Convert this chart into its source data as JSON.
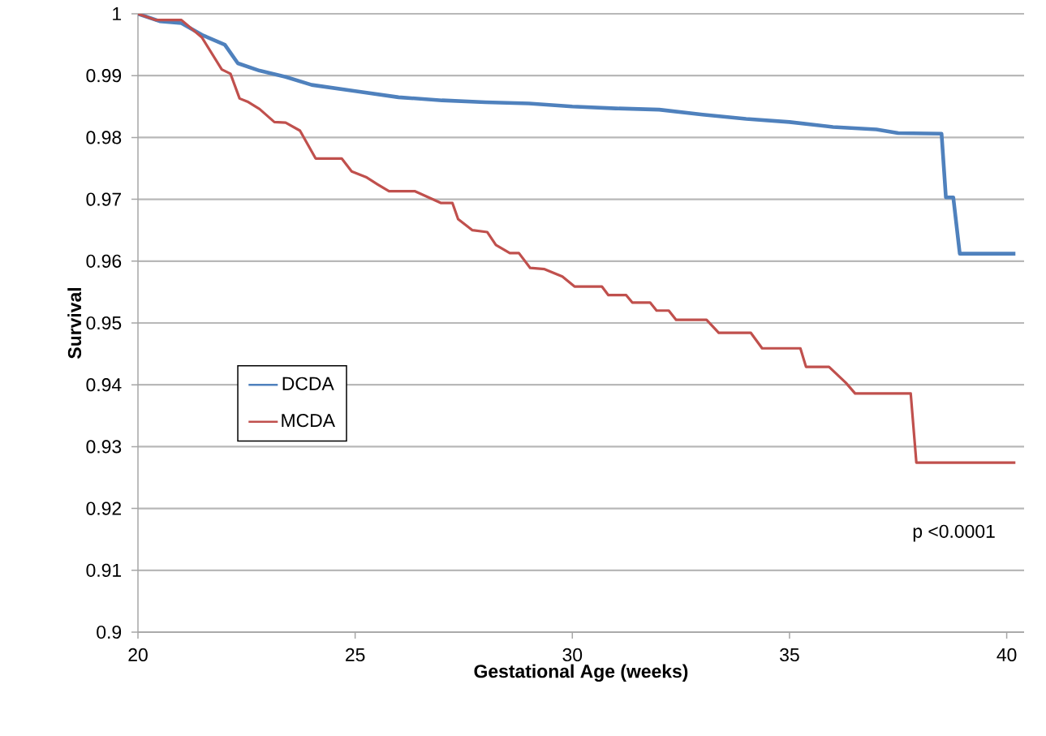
{
  "chart_data": {
    "type": "line",
    "xlabel": "Gestational Age (weeks)",
    "ylabel": "Survival",
    "xlim": [
      20,
      40.4
    ],
    "xticks": [
      20,
      25,
      30,
      35,
      40
    ],
    "ylim": [
      0.9,
      1
    ],
    "yticks": [
      0.9,
      0.91,
      0.92,
      0.93,
      0.94,
      0.95,
      0.96,
      0.97,
      0.98,
      0.99,
      1
    ],
    "grid": "y",
    "legend": "left",
    "line_style": "solid",
    "marker": "none",
    "annotations": [
      "p <0.0001"
    ],
    "series": [
      {
        "name": "DCDA",
        "color": "#4f81bd",
        "x": [
          20,
          20.5,
          21,
          21.5,
          22,
          22.3,
          22.8,
          23.4,
          24,
          25,
          26,
          27,
          28,
          29,
          30,
          31,
          32,
          33,
          34,
          35,
          36,
          37,
          37.5,
          38.5,
          38.6,
          38.77,
          38.92,
          40.2
        ],
        "values": [
          1,
          0.9988,
          0.9985,
          0.9965,
          0.995,
          0.992,
          0.9908,
          0.9898,
          0.9885,
          0.9875,
          0.9865,
          0.986,
          0.9857,
          0.9855,
          0.985,
          0.9847,
          0.9845,
          0.9837,
          0.983,
          0.9825,
          0.9817,
          0.9813,
          0.9807,
          0.9806,
          0.9703,
          0.9703,
          0.9612,
          0.9612
        ]
      },
      {
        "name": "MCDA",
        "color": "#c0504d",
        "x": [
          20,
          20.4,
          21.0,
          21.47,
          21.93,
          22.13,
          22.34,
          22.52,
          22.8,
          23.14,
          23.4,
          23.73,
          24.09,
          24.69,
          24.92,
          25.25,
          25.52,
          25.78,
          26.38,
          26.98,
          27.24,
          27.37,
          27.7,
          28.04,
          28.24,
          28.56,
          28.77,
          29.03,
          29.36,
          29.77,
          30.05,
          30.68,
          30.83,
          31.24,
          31.38,
          31.79,
          31.94,
          32.22,
          32.39,
          33.09,
          33.37,
          34.11,
          34.37,
          35.25,
          35.38,
          35.91,
          36.3,
          36.51,
          37.79,
          37.92,
          40.2
        ],
        "values": [
          1,
          0.999,
          0.999,
          0.9962,
          0.991,
          0.9903,
          0.9863,
          0.9858,
          0.9846,
          0.9825,
          0.9824,
          0.9811,
          0.9766,
          0.9766,
          0.9745,
          0.9736,
          0.9724,
          0.9713,
          0.9713,
          0.9694,
          0.9694,
          0.9668,
          0.965,
          0.9647,
          0.9626,
          0.9613,
          0.9613,
          0.9589,
          0.9587,
          0.9575,
          0.9559,
          0.9559,
          0.9545,
          0.9545,
          0.9533,
          0.9533,
          0.952,
          0.952,
          0.9505,
          0.9505,
          0.9484,
          0.9484,
          0.9459,
          0.9459,
          0.9429,
          0.9429,
          0.9403,
          0.9386,
          0.9386,
          0.9274,
          0.9274
        ]
      }
    ]
  }
}
